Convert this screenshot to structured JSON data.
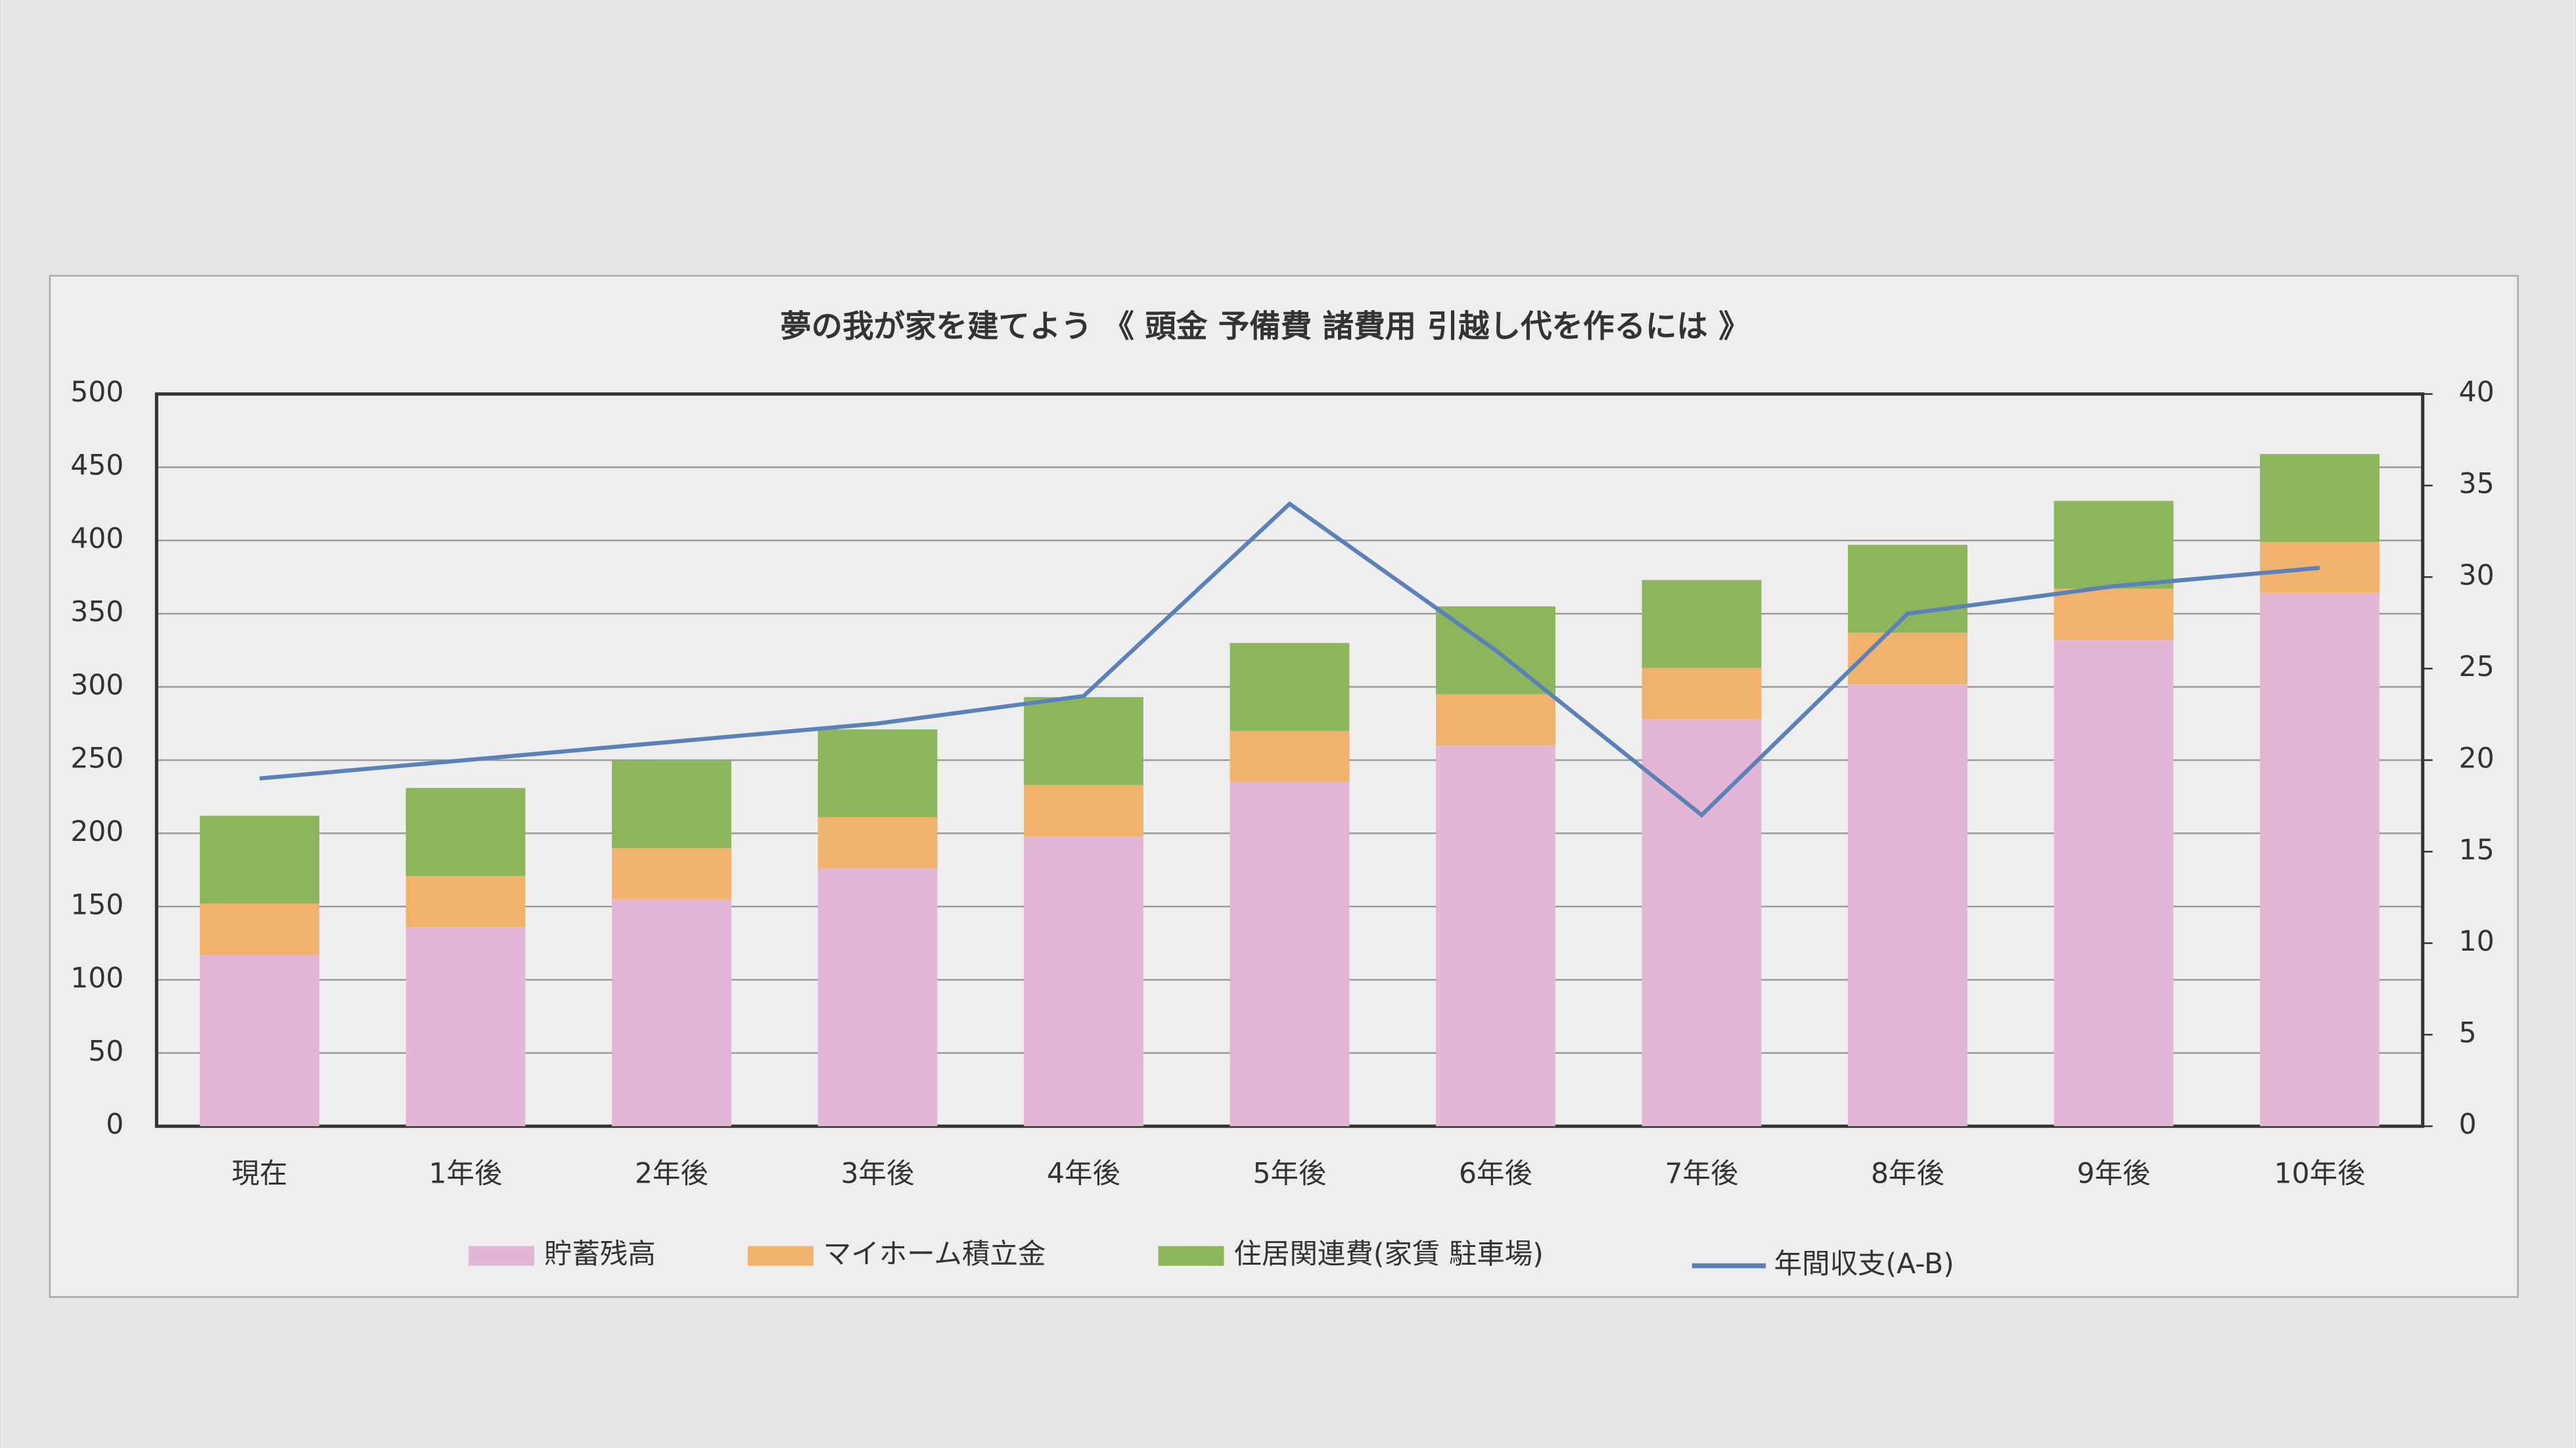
{
  "chart_data": {
    "type": "bar",
    "stacked": true,
    "title": "夢の我が家を建てよう 《 頭金 予備費 諸費用 引越し代を作るには 》",
    "categories": [
      "現在",
      "1年後",
      "2年後",
      "3年後",
      "4年後",
      "5年後",
      "6年後",
      "7年後",
      "8年後",
      "9年後",
      "10年後"
    ],
    "series": [
      {
        "name": "貯蓄残高",
        "color": "#e4b6d6",
        "values": [
          117,
          136,
          155,
          176,
          198,
          235,
          260,
          278,
          302,
          332,
          364
        ]
      },
      {
        "name": "マイホーム積立金",
        "color": "#f0b26c",
        "values": [
          35,
          35,
          35,
          35,
          35,
          35,
          35,
          35,
          35,
          35,
          35
        ]
      },
      {
        "name": "住居関連費(家賃 駐車場)",
        "color": "#8db65c",
        "values": [
          60,
          60,
          60,
          60,
          60,
          60,
          60,
          60,
          60,
          60,
          60
        ]
      },
      {
        "name": "年間収支(A-B)",
        "color": "#5b82b8",
        "type": "line",
        "axis": "y2",
        "values": [
          19,
          20,
          21,
          22,
          23.5,
          34,
          26,
          17,
          28,
          29.5,
          30.5
        ]
      }
    ],
    "ylim": [
      0,
      500
    ],
    "yticks": [
      0,
      50,
      100,
      150,
      200,
      250,
      300,
      350,
      400,
      450,
      500
    ],
    "y2lim": [
      0,
      40
    ],
    "y2ticks": [
      0,
      5,
      10,
      15,
      20,
      25,
      30,
      35,
      40
    ],
    "grid": true
  }
}
